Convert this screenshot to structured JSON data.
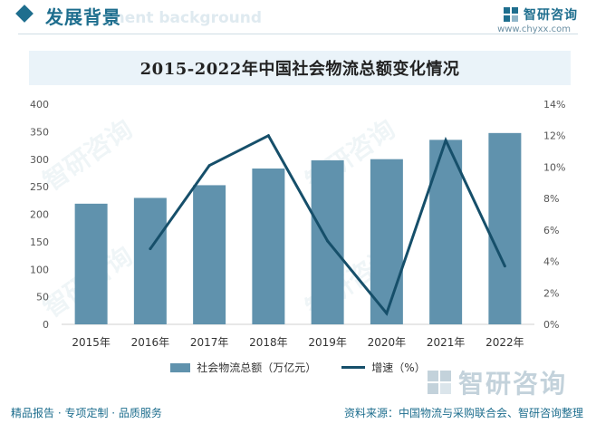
{
  "header": {
    "section_title": "发展背景",
    "section_subtitle": "ment background",
    "brand_name": "智研咨询",
    "brand_url": "www.chyxx.com"
  },
  "watermark": {
    "text": "智研咨询"
  },
  "chart_data": {
    "type": "bar",
    "title": "2015-2022年中国社会物流总额变化情况",
    "categories": [
      "2015年",
      "2016年",
      "2017年",
      "2018年",
      "2019年",
      "2020年",
      "2021年",
      "2022年"
    ],
    "series": [
      {
        "name": "社会物流总额（万亿元）",
        "type": "bar",
        "axis": "left",
        "color": "#6092ad",
        "values": [
          219.2,
          229.7,
          252.8,
          283.1,
          298.0,
          300.1,
          335.2,
          347.6
        ]
      },
      {
        "name": "增速（%）",
        "type": "line",
        "axis": "right",
        "color": "#164f6a",
        "values": [
          null,
          4.8,
          10.1,
          12.0,
          5.3,
          0.7,
          11.7,
          3.7
        ]
      }
    ],
    "y_left": {
      "min": 0,
      "max": 400,
      "ticks": [
        "0",
        "50",
        "100",
        "150",
        "200",
        "250",
        "300",
        "350",
        "400"
      ]
    },
    "y_right": {
      "min": 0,
      "max": 14,
      "ticks": [
        "0%",
        "2%",
        "4%",
        "6%",
        "8%",
        "10%",
        "12%",
        "14%"
      ]
    },
    "legend_position": "bottom",
    "grid": false
  },
  "footer": {
    "left": "精品报告 · 专项定制 · 品质服务",
    "right": "资料来源：中国物流与采购联合会、智研咨询整理"
  }
}
